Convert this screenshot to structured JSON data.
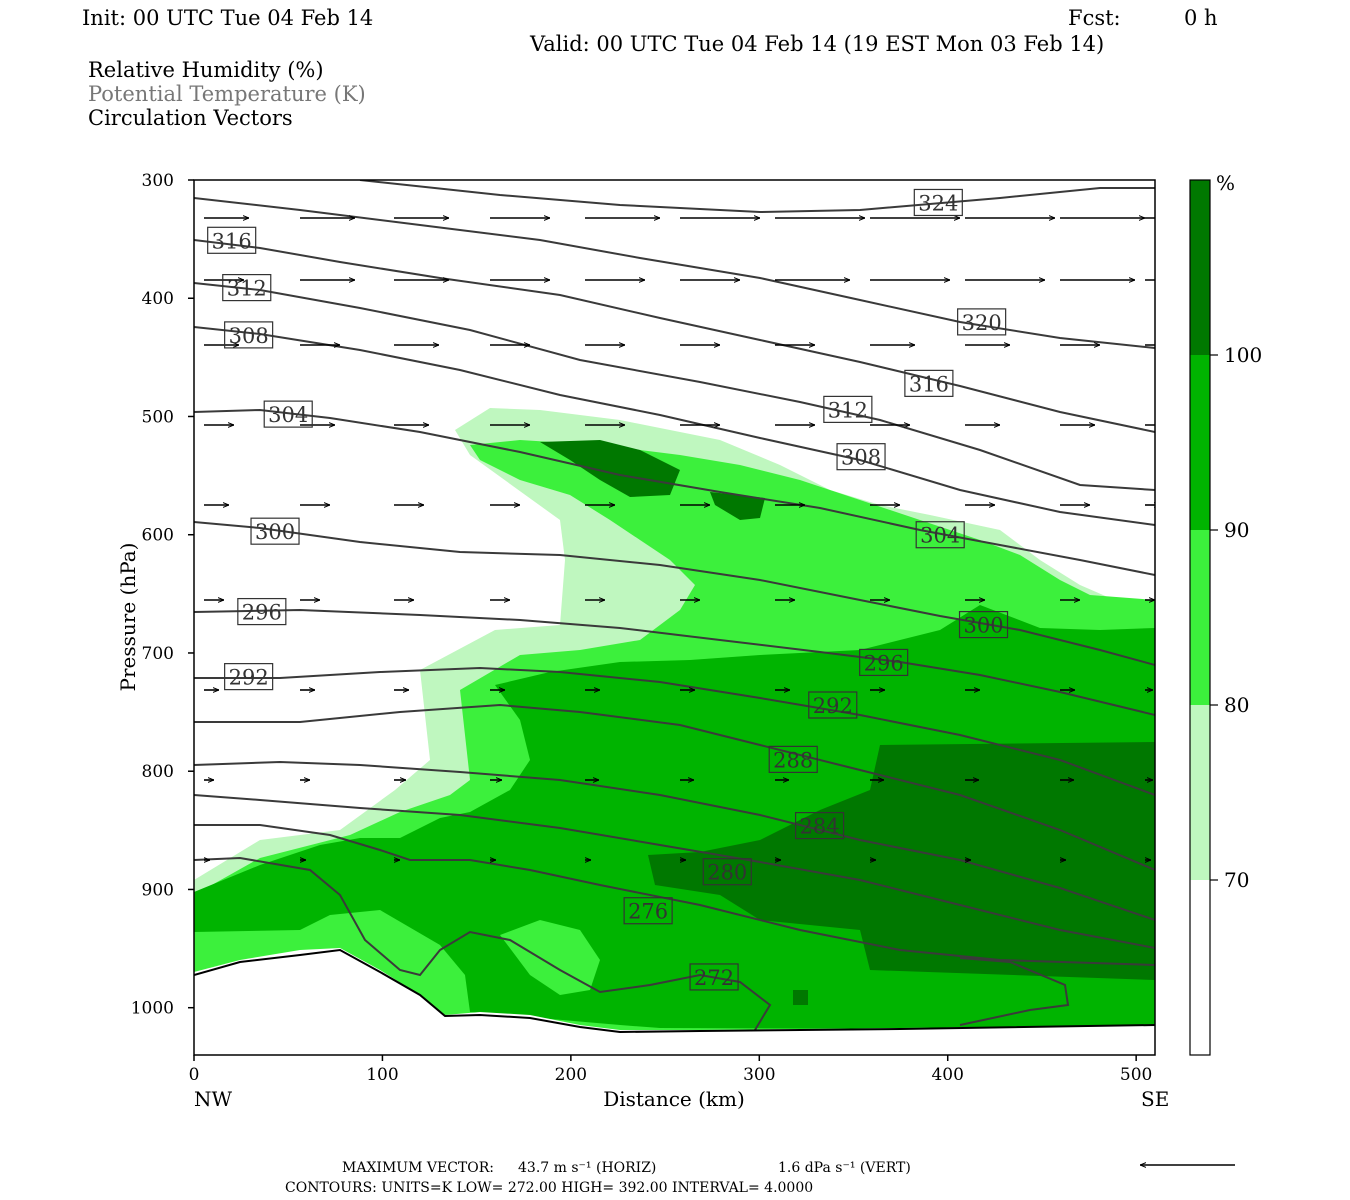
{
  "header": {
    "init": "Init: 00 UTC Tue 04 Feb 14",
    "fcst_label": "Fcst:",
    "fcst_value": "0 h",
    "valid": "Valid: 00 UTC Tue 04 Feb 14 (19 EST Mon 03 Feb 14)"
  },
  "legend_fields": [
    {
      "text": "Relative Humidity (%)",
      "color": "#000000"
    },
    {
      "text": "Potential Temperature (K)",
      "color": "#777777"
    },
    {
      "text": "Circulation Vectors",
      "color": "#000000"
    }
  ],
  "footer": {
    "max_vector_label": "MAXIMUM VECTOR:",
    "horiz_value": "43.7 m s⁻¹ (HORIZ)",
    "vert_value": "1.6 dPa s⁻¹ (VERT)",
    "contours": "CONTOURS:  UNITS=K  LOW=  272.00     HIGH=  392.00      INTERVAL=    4.0000"
  },
  "colorbar": {
    "unit": "%",
    "ticks": [
      "70",
      "80",
      "90",
      "100"
    ],
    "colors": [
      "#ffffff",
      "#bff7bf",
      "#3cf03c",
      "#00b400",
      "#007800"
    ]
  },
  "chart_data": {
    "type": "contour",
    "xlabel": "Distance (km)",
    "ylabel": "Pressure (hPa)",
    "xlim": [
      0,
      510
    ],
    "ylim": [
      1040,
      300
    ],
    "x_ticks": [
      "0",
      "100",
      "200",
      "300",
      "400",
      "500"
    ],
    "y_ticks": [
      "300",
      "400",
      "500",
      "600",
      "700",
      "800",
      "900",
      "1000"
    ],
    "left_end": "NW",
    "right_end": "SE",
    "theta_contour_labels": [
      {
        "label": "324",
        "x": 395,
        "p": 319
      },
      {
        "label": "316",
        "x": 20,
        "p": 351
      },
      {
        "label": "312",
        "x": 28,
        "p": 391
      },
      {
        "label": "308",
        "x": 29,
        "p": 431
      },
      {
        "label": "304",
        "x": 50,
        "p": 498
      },
      {
        "label": "320",
        "x": 418,
        "p": 420
      },
      {
        "label": "316",
        "x": 390,
        "p": 472
      },
      {
        "label": "312",
        "x": 347,
        "p": 494
      },
      {
        "label": "308",
        "x": 354,
        "p": 534
      },
      {
        "label": "300",
        "x": 43,
        "p": 597
      },
      {
        "label": "304",
        "x": 396,
        "p": 600
      },
      {
        "label": "296",
        "x": 36,
        "p": 665
      },
      {
        "label": "300",
        "x": 419,
        "p": 676
      },
      {
        "label": "292",
        "x": 29,
        "p": 720
      },
      {
        "label": "296",
        "x": 366,
        "p": 708
      },
      {
        "label": "292",
        "x": 339,
        "p": 744
      },
      {
        "label": "288",
        "x": 318,
        "p": 790
      },
      {
        "label": "284",
        "x": 332,
        "p": 846
      },
      {
        "label": "280",
        "x": 283,
        "p": 885
      },
      {
        "label": "276",
        "x": 241,
        "p": 918
      },
      {
        "label": "272",
        "x": 276,
        "p": 974
      }
    ]
  }
}
